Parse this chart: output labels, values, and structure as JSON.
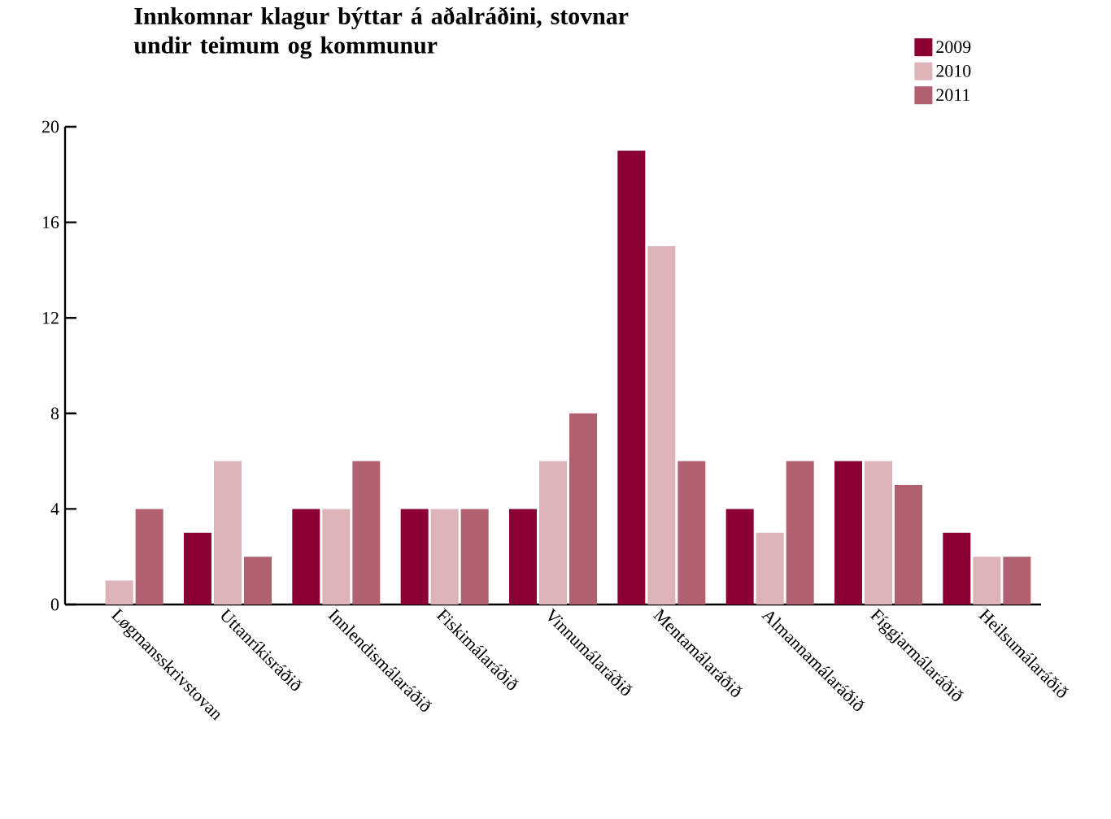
{
  "chart_data": {
    "type": "bar",
    "title": "Innkomnar klagur býttar á aðalráðini, stovnar undir teimum og kommunur",
    "categories": [
      "Løgmansskrivstovan",
      "Uttanríkisráðið",
      "Innlendismálaráðið",
      "Fiskimálaráðið",
      "Vinnumálaráðið",
      "Mentamálaráðið",
      "Almannamálaráðið",
      "Fíggjarmálaráðið",
      "Heilsumálaráðið"
    ],
    "series": [
      {
        "name": "2009",
        "color": "#8a0033",
        "values": [
          0,
          3,
          4,
          4,
          4,
          19,
          4,
          6,
          3
        ]
      },
      {
        "name": "2010",
        "color": "#dcb3b7",
        "values": [
          1,
          6,
          4,
          4,
          6,
          15,
          3,
          6,
          2
        ]
      },
      {
        "name": "2011",
        "color": "#b0606f",
        "values": [
          4,
          2,
          6,
          4,
          8,
          6,
          6,
          5,
          2
        ]
      }
    ],
    "ylim": [
      0,
      20
    ],
    "yticks": [
      0,
      4,
      8,
      12,
      16,
      20
    ],
    "legend": "top right",
    "grid": false
  }
}
